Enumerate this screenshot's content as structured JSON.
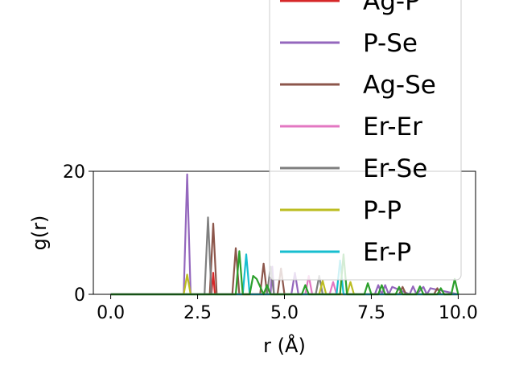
{
  "chart_data": {
    "type": "line",
    "title": "",
    "xlabel": "r (Å)",
    "ylabel": "g(r)",
    "xlim": [
      -0.5,
      10.5
    ],
    "ylim": [
      0,
      20
    ],
    "x_ticks": [
      "0.0",
      "2.5",
      "5.0",
      "7.5",
      "10.0"
    ],
    "x_tick_values": [
      0,
      2.5,
      5,
      7.5,
      10
    ],
    "y_ticks": [
      "0",
      "20"
    ],
    "y_tick_values": [
      0,
      20
    ],
    "grid": false,
    "legend_placement": "upper-right (extends above plot)",
    "series": [
      {
        "name": "Ag-P",
        "color": "#d62728",
        "x": [
          0,
          2.9,
          2.95,
          3.0,
          5.0
        ],
        "y": [
          0,
          0,
          3.5,
          0,
          0
        ]
      },
      {
        "name": "P-Se",
        "color": "#9467bd",
        "x": [
          0,
          2.1,
          2.2,
          2.3,
          4.6,
          4.65,
          4.7,
          5.2,
          5.3,
          5.4,
          7.6,
          7.7,
          7.8,
          7.9,
          8.0,
          8.1,
          8.6,
          8.7,
          8.8,
          9.0,
          9.1,
          9.2,
          10.0
        ],
        "y": [
          0,
          0,
          19.5,
          0,
          0,
          4.5,
          0,
          0,
          3.5,
          0,
          0,
          1.5,
          0,
          1.5,
          0,
          1.2,
          0,
          1.3,
          0,
          1.2,
          0,
          1.0,
          0
        ]
      },
      {
        "name": "Ag-Se",
        "color": "#8c564b",
        "x": [
          0,
          2.85,
          2.95,
          3.05,
          3.5,
          3.6,
          3.7,
          4.3,
          4.4,
          4.5,
          4.8,
          4.9,
          5.0,
          8.3,
          8.4,
          8.5,
          9.3,
          9.4,
          9.5,
          10.0
        ],
        "y": [
          0,
          0,
          11.5,
          0,
          0,
          7.5,
          0,
          0,
          5.0,
          0,
          0,
          4.2,
          0,
          0,
          1.2,
          0,
          0,
          1.0,
          0,
          0
        ]
      },
      {
        "name": "Er-Er",
        "color": "#e377c2",
        "x": [
          0,
          5.6,
          5.7,
          5.8,
          6.3,
          6.4,
          6.5,
          10.0
        ],
        "y": [
          0,
          0,
          3.0,
          0,
          0,
          2.0,
          0,
          0
        ]
      },
      {
        "name": "Er-Se",
        "color": "#7f7f7f",
        "x": [
          0,
          2.7,
          2.8,
          2.9,
          4.5,
          4.6,
          4.7,
          5.9,
          6.0,
          6.1,
          10.0
        ],
        "y": [
          0,
          0,
          12.5,
          0,
          0,
          4.5,
          0,
          0,
          3.0,
          0,
          0
        ]
      },
      {
        "name": "P-P",
        "color": "#bcbd22",
        "x": [
          0,
          2.1,
          2.2,
          2.3,
          6.0,
          6.1,
          6.2,
          6.8,
          6.9,
          7.0,
          10.0
        ],
        "y": [
          0,
          0,
          3.2,
          0,
          0,
          2.2,
          0,
          0,
          2.0,
          0,
          0
        ]
      },
      {
        "name": "Er-P",
        "color": "#17becf",
        "x": [
          0,
          3.8,
          3.9,
          4.0,
          6.5,
          6.6,
          6.7,
          10.0
        ],
        "y": [
          0,
          0,
          6.5,
          0,
          0,
          5.5,
          0,
          0
        ]
      },
      {
        "name": "",
        "color": "#2ca02c",
        "x": [
          0,
          3.6,
          3.7,
          3.8,
          4.0,
          4.1,
          4.2,
          4.4,
          4.5,
          4.6,
          5.5,
          5.6,
          5.7,
          6.6,
          6.7,
          6.8,
          7.3,
          7.4,
          7.5,
          7.7,
          7.8,
          7.9,
          8.2,
          8.3,
          8.4,
          8.8,
          8.9,
          9.0,
          9.4,
          9.5,
          9.6,
          9.8,
          9.9,
          10.0
        ],
        "y": [
          0,
          0,
          7.0,
          0,
          0,
          3.0,
          2.5,
          0,
          1.5,
          0,
          0,
          1.5,
          0,
          0,
          6.5,
          0,
          0,
          1.8,
          0,
          0,
          1.5,
          0,
          0,
          1.2,
          0,
          0,
          1.3,
          0,
          0,
          1.0,
          0,
          0,
          2.5,
          0
        ]
      }
    ],
    "legend": {
      "entries": [
        {
          "label": "Ag-P",
          "color": "#d62728"
        },
        {
          "label": "P-Se",
          "color": "#9467bd"
        },
        {
          "label": "Ag-Se",
          "color": "#8c564b"
        },
        {
          "label": "Er-Er",
          "color": "#e377c2"
        },
        {
          "label": "Er-Se",
          "color": "#7f7f7f"
        },
        {
          "label": "P-P",
          "color": "#bcbd22"
        },
        {
          "label": "Er-P",
          "color": "#17becf"
        }
      ]
    }
  }
}
